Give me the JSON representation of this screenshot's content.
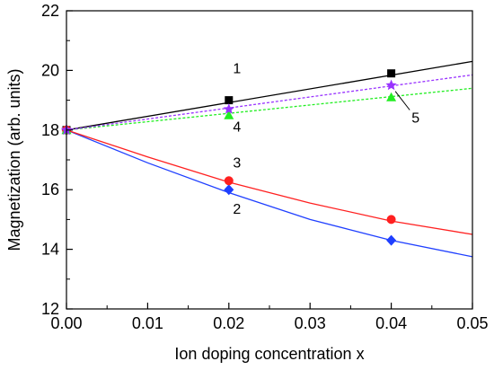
{
  "chart_data": {
    "type": "line",
    "xlabel": "Ion doping concentration x",
    "ylabel": "Magnetization (arb. units)",
    "xlim": [
      0.0,
      0.05
    ],
    "ylim": [
      12,
      22
    ],
    "x_ticks": [
      0.0,
      0.01,
      0.02,
      0.03,
      0.04,
      0.05
    ],
    "x_tick_labels": [
      "0.00",
      "0.01",
      "0.02",
      "0.03",
      "0.04",
      "0.05"
    ],
    "y_ticks": [
      12,
      14,
      16,
      18,
      20,
      22
    ],
    "y_tick_labels": [
      "12",
      "14",
      "16",
      "18",
      "20",
      "22"
    ],
    "grid": false,
    "series": [
      {
        "name": "1",
        "color": "#000000",
        "marker": "square",
        "dashed": false,
        "points": [
          [
            0.0,
            18.0
          ],
          [
            0.02,
            19.0
          ],
          [
            0.04,
            19.9
          ]
        ],
        "curve": [
          [
            0.0,
            18.0
          ],
          [
            0.05,
            20.3
          ]
        ]
      },
      {
        "name": "2",
        "color": "#1f3fff",
        "marker": "diamond",
        "dashed": false,
        "points": [
          [
            0.0,
            18.0
          ],
          [
            0.02,
            16.0
          ],
          [
            0.04,
            14.3
          ]
        ],
        "curve": [
          [
            0.0,
            18.0
          ],
          [
            0.01,
            16.9
          ],
          [
            0.02,
            15.9
          ],
          [
            0.03,
            15.0
          ],
          [
            0.04,
            14.3
          ],
          [
            0.05,
            13.75
          ]
        ]
      },
      {
        "name": "3",
        "color": "#ff2020",
        "marker": "circle",
        "dashed": false,
        "points": [
          [
            0.0,
            18.0
          ],
          [
            0.02,
            16.3
          ],
          [
            0.04,
            15.0
          ]
        ],
        "curve": [
          [
            0.0,
            18.0
          ],
          [
            0.01,
            17.1
          ],
          [
            0.02,
            16.25
          ],
          [
            0.03,
            15.55
          ],
          [
            0.04,
            14.95
          ],
          [
            0.05,
            14.5
          ]
        ]
      },
      {
        "name": "4",
        "color": "#22ee22",
        "marker": "triangle",
        "dashed": true,
        "points": [
          [
            0.0,
            18.0
          ],
          [
            0.02,
            18.5
          ],
          [
            0.04,
            19.1
          ]
        ],
        "curve": [
          [
            0.0,
            18.0
          ],
          [
            0.05,
            19.4
          ]
        ]
      },
      {
        "name": "5",
        "color": "#9933ff",
        "marker": "star",
        "dashed": true,
        "points": [
          [
            0.0,
            18.0
          ],
          [
            0.02,
            18.7
          ],
          [
            0.04,
            19.5
          ]
        ],
        "curve": [
          [
            0.0,
            18.0
          ],
          [
            0.05,
            19.85
          ]
        ]
      }
    ],
    "annotations": [
      {
        "text": "1",
        "x": 0.0205,
        "y": 19.9
      },
      {
        "text": "3",
        "x": 0.0205,
        "y": 16.75
      },
      {
        "text": "2",
        "x": 0.0205,
        "y": 15.2
      },
      {
        "text": "4",
        "x": 0.0205,
        "y": 17.95
      },
      {
        "text": "5",
        "x": 0.0425,
        "y": 18.25,
        "pointer_to": [
          0.0405,
          19.3
        ]
      }
    ]
  }
}
